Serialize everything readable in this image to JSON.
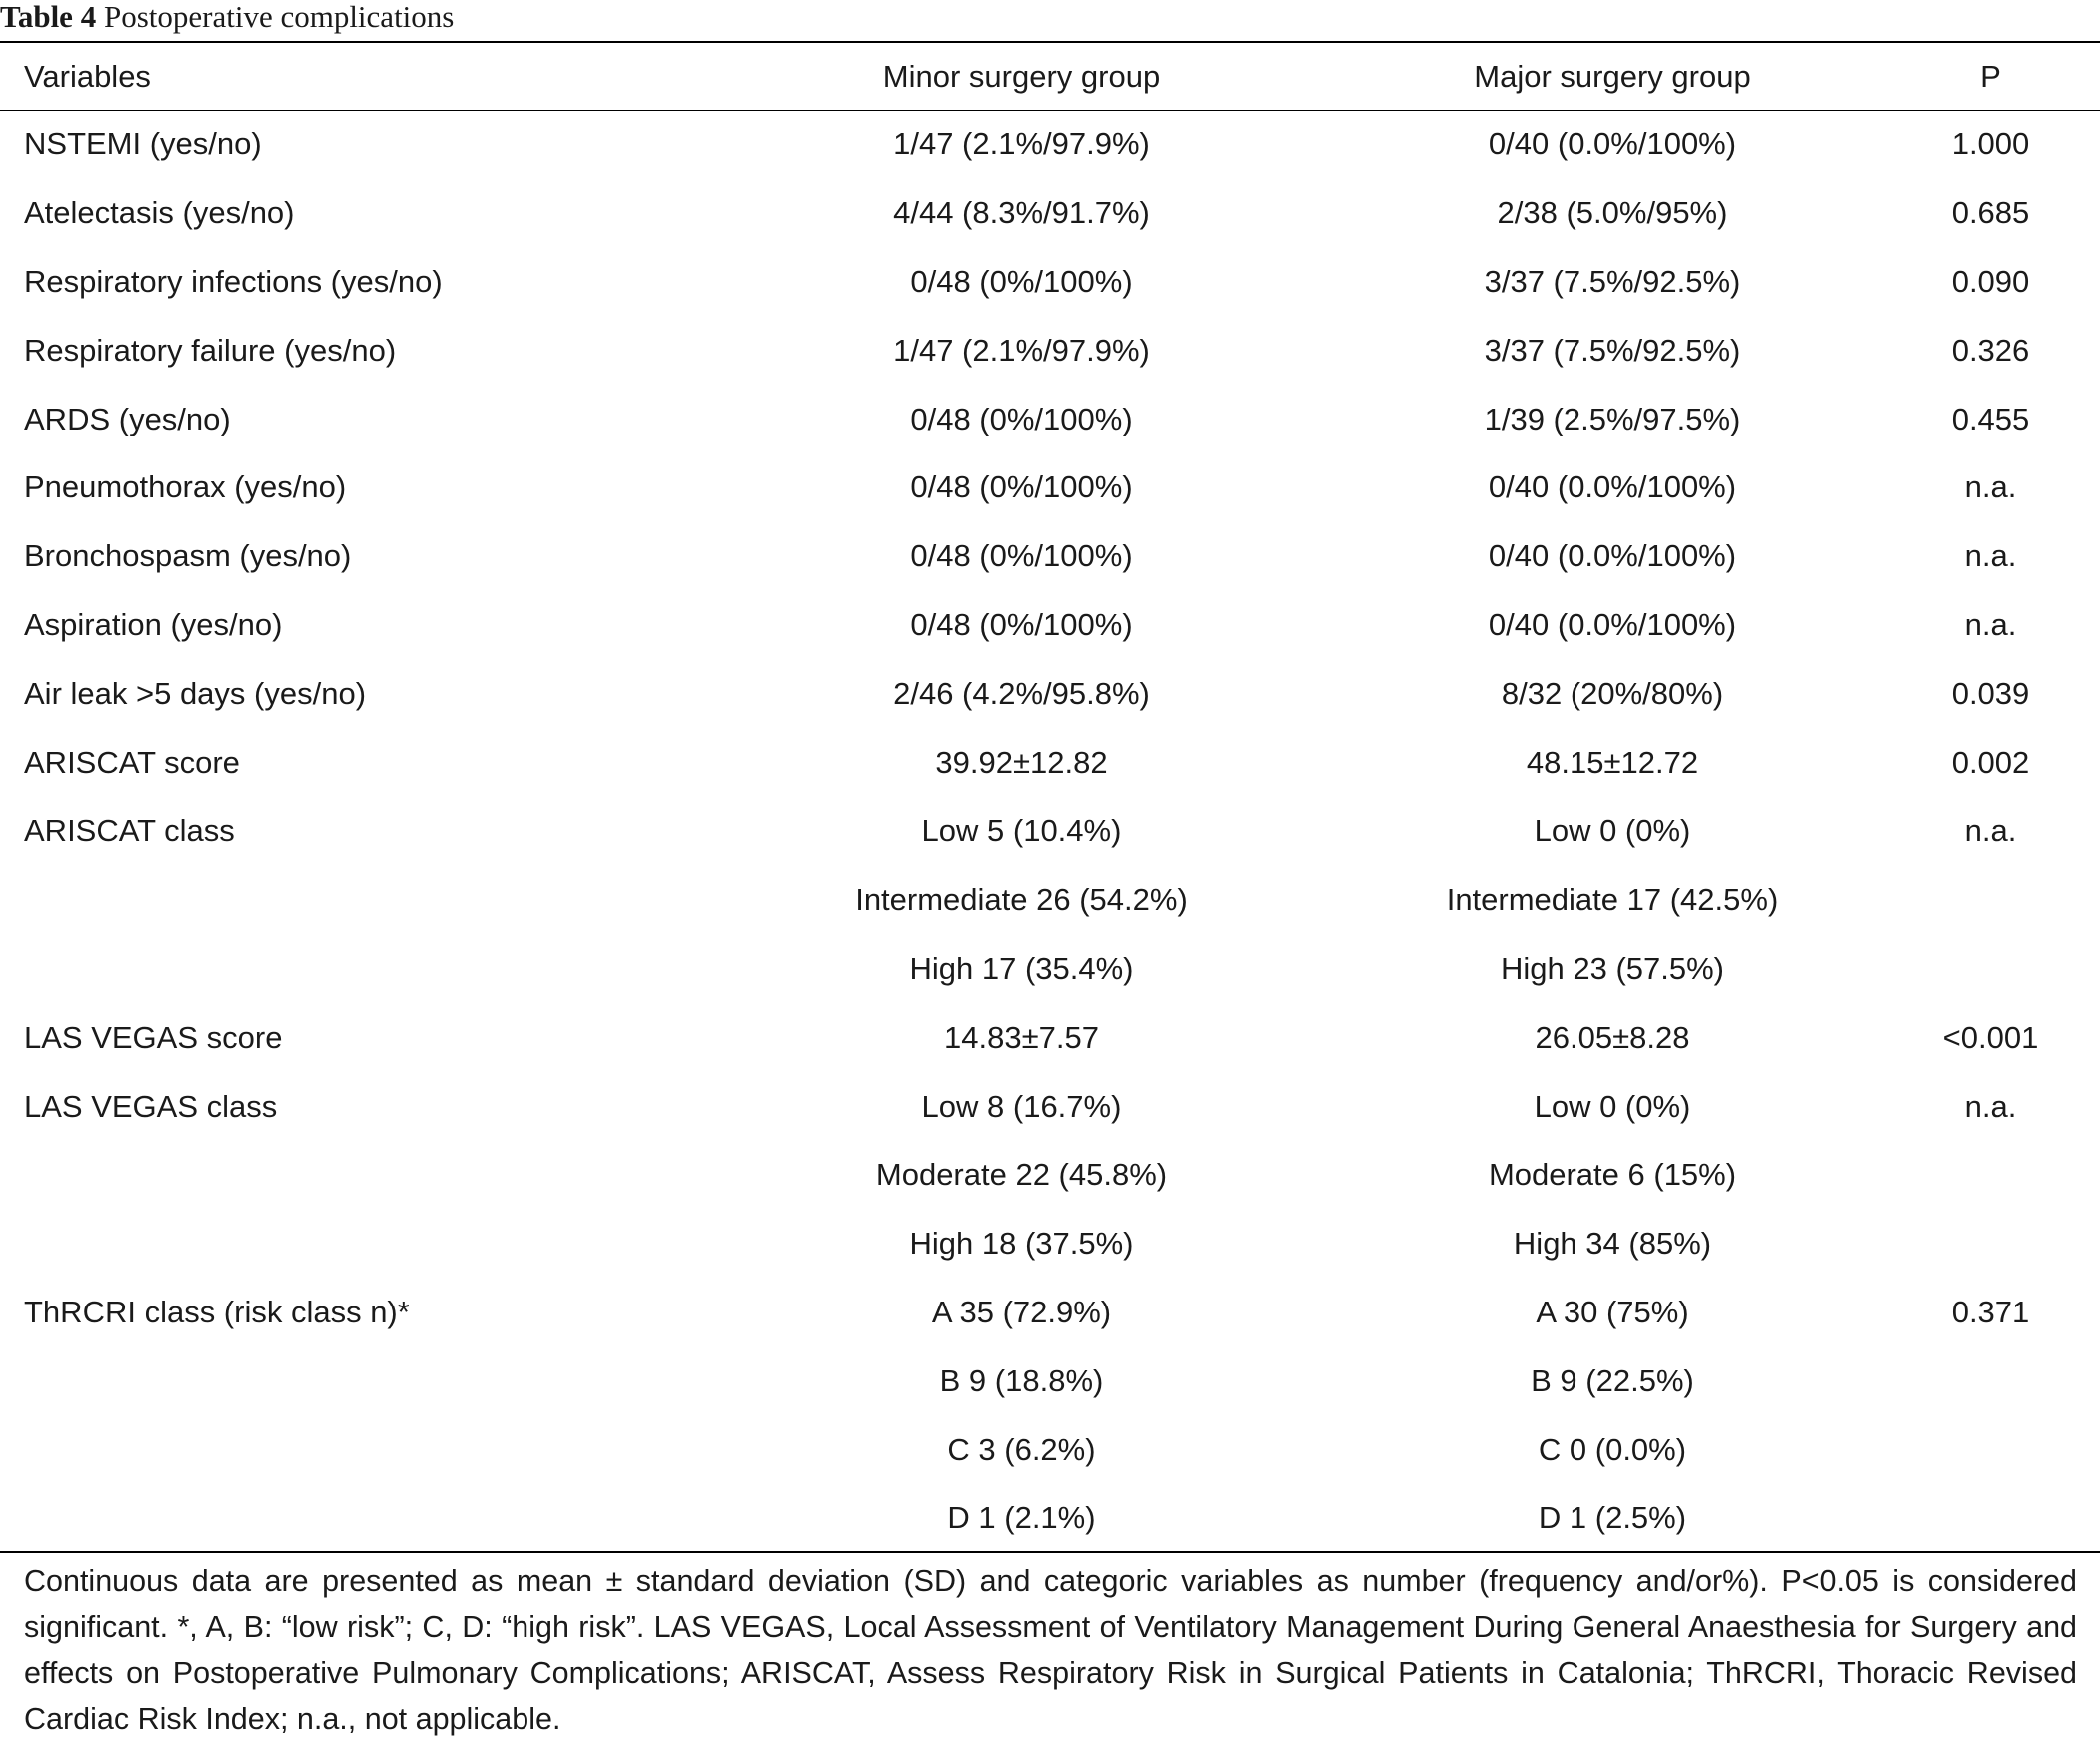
{
  "caption": {
    "label": "Table 4",
    "text": "Postoperative complications"
  },
  "table": {
    "headers": [
      "Variables",
      "Minor surgery group",
      "Major surgery group",
      "P"
    ],
    "rows": [
      [
        "NSTEMI (yes/no)",
        "1/47 (2.1%/97.9%)",
        "0/40 (0.0%/100%)",
        "1.000"
      ],
      [
        "Atelectasis (yes/no)",
        "4/44 (8.3%/91.7%)",
        "2/38 (5.0%/95%)",
        "0.685"
      ],
      [
        "Respiratory infections (yes/no)",
        "0/48 (0%/100%)",
        "3/37 (7.5%/92.5%)",
        "0.090"
      ],
      [
        "Respiratory failure (yes/no)",
        "1/47 (2.1%/97.9%)",
        "3/37 (7.5%/92.5%)",
        "0.326"
      ],
      [
        "ARDS (yes/no)",
        "0/48 (0%/100%)",
        "1/39 (2.5%/97.5%)",
        "0.455"
      ],
      [
        "Pneumothorax (yes/no)",
        "0/48 (0%/100%)",
        "0/40 (0.0%/100%)",
        "n.a."
      ],
      [
        "Bronchospasm (yes/no)",
        "0/48 (0%/100%)",
        "0/40 (0.0%/100%)",
        "n.a."
      ],
      [
        "Aspiration (yes/no)",
        "0/48 (0%/100%)",
        "0/40 (0.0%/100%)",
        "n.a."
      ],
      [
        "Air leak >5 days (yes/no)",
        "2/46 (4.2%/95.8%)",
        "8/32 (20%/80%)",
        "0.039"
      ],
      [
        "ARISCAT score",
        "39.92±12.82",
        "48.15±12.72",
        "0.002"
      ],
      [
        "ARISCAT class",
        "Low 5 (10.4%)",
        "Low 0 (0%)",
        "n.a."
      ],
      [
        "",
        "Intermediate 26 (54.2%)",
        "Intermediate 17 (42.5%)",
        ""
      ],
      [
        "",
        "High 17 (35.4%)",
        "High 23 (57.5%)",
        ""
      ],
      [
        "LAS VEGAS score",
        "14.83±7.57",
        "26.05±8.28",
        "<0.001"
      ],
      [
        "LAS VEGAS class",
        "Low 8 (16.7%)",
        "Low 0 (0%)",
        "n.a."
      ],
      [
        "",
        "Moderate 22 (45.8%)",
        "Moderate 6 (15%)",
        ""
      ],
      [
        "",
        "High 18 (37.5%)",
        "High 34 (85%)",
        ""
      ],
      [
        "ThRCRI class (risk class n)*",
        "A 35 (72.9%)",
        "A 30 (75%)",
        "0.371"
      ],
      [
        "",
        "B 9 (18.8%)",
        "B 9 (22.5%)",
        ""
      ],
      [
        "",
        "C 3 (6.2%)",
        "C 0 (0.0%)",
        ""
      ],
      [
        "",
        "D 1 (2.1%)",
        "D 1 (2.5%)",
        ""
      ]
    ]
  },
  "footnote": "Continuous data are presented as mean ± standard deviation (SD) and categoric variables as number (frequency and/or%). P<0.05 is considered significant. *, A, B: “low risk”; C, D: “high risk”. LAS VEGAS, Local Assessment of Ventilatory Management During General Anaesthesia for Surgery and effects on Postoperative Pulmonary Complications; ARISCAT, Assess Respiratory Risk in Surgical Patients in Catalonia; ThRCRI, Thoracic Revised Cardiac Risk Index; n.a., not applicable."
}
